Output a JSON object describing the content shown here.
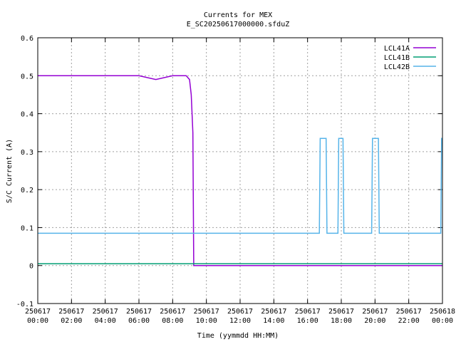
{
  "chart_data": {
    "type": "line",
    "title": "Currents for MEX",
    "subtitle": "E_SC20250617000000.sfduZ",
    "xlabel": "Time (yymmdd HH:MM)",
    "ylabel": "S/C Current (A)",
    "ylim": [
      -0.1,
      0.6
    ],
    "yticks": [
      "-0.1",
      "0",
      "0.1",
      "0.2",
      "0.3",
      "0.4",
      "0.5",
      "0.6"
    ],
    "yvals": [
      -0.1,
      0,
      0.1,
      0.2,
      0.3,
      0.4,
      0.5,
      0.6
    ],
    "xlim_hours": [
      0,
      24
    ],
    "xticks": [
      {
        "date": "250617",
        "time": "00:00"
      },
      {
        "date": "250617",
        "time": "02:00"
      },
      {
        "date": "250617",
        "time": "04:00"
      },
      {
        "date": "250617",
        "time": "06:00"
      },
      {
        "date": "250617",
        "time": "08:00"
      },
      {
        "date": "250617",
        "time": "10:00"
      },
      {
        "date": "250617",
        "time": "12:00"
      },
      {
        "date": "250617",
        "time": "14:00"
      },
      {
        "date": "250617",
        "time": "16:00"
      },
      {
        "date": "250617",
        "time": "18:00"
      },
      {
        "date": "250617",
        "time": "20:00"
      },
      {
        "date": "250617",
        "time": "22:00"
      },
      {
        "date": "250618",
        "time": "00:00"
      }
    ],
    "grid": true,
    "legend_position": "top-right",
    "series": [
      {
        "name": "LCL41A",
        "color": "#9400d3",
        "x": [
          0,
          1,
          2,
          3,
          4,
          5,
          6,
          7,
          8,
          8.8,
          9.0,
          9.1,
          9.2,
          9.25,
          12,
          16,
          20,
          24
        ],
        "y": [
          0.5,
          0.5,
          0.5,
          0.5,
          0.5,
          0.5,
          0.5,
          0.49,
          0.5,
          0.5,
          0.49,
          0.45,
          0.35,
          0.0,
          0.0,
          0.0,
          0.0,
          0.0
        ]
      },
      {
        "name": "LCL41B",
        "color": "#009e73",
        "x": [
          0,
          4,
          8,
          12,
          16,
          20,
          24
        ],
        "y": [
          0.005,
          0.005,
          0.005,
          0.005,
          0.005,
          0.005,
          0.005
        ]
      },
      {
        "name": "LCL42B",
        "color": "#56b4e9",
        "x": [
          0,
          16.7,
          16.75,
          17.1,
          17.15,
          17.8,
          17.85,
          18.1,
          18.15,
          19.8,
          19.85,
          20.2,
          20.25,
          23.9,
          23.95,
          24
        ],
        "y": [
          0.085,
          0.085,
          0.335,
          0.335,
          0.085,
          0.085,
          0.335,
          0.335,
          0.085,
          0.085,
          0.335,
          0.335,
          0.085,
          0.085,
          0.335,
          0.335
        ]
      }
    ]
  }
}
